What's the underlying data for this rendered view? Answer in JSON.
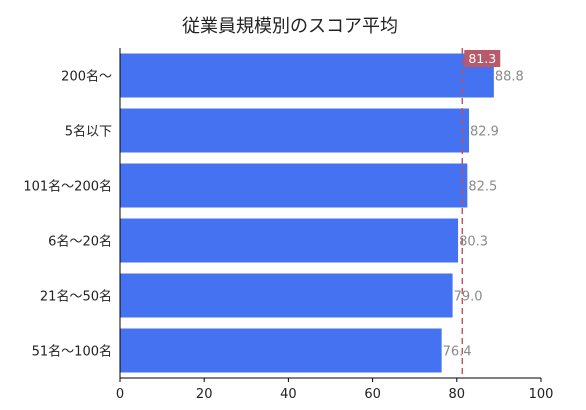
{
  "chart_data": {
    "type": "bar",
    "orientation": "horizontal",
    "title": "従業員規模別のスコア平均",
    "xlabel": "",
    "ylabel": "",
    "categories": [
      "200名〜",
      "5名以下",
      "101名〜200名",
      "6名〜20名",
      "21名〜50名",
      "51名〜100名"
    ],
    "values": [
      88.8,
      82.9,
      82.5,
      80.3,
      79.0,
      76.4
    ],
    "value_labels": [
      "88.8",
      "82.9",
      "82.5",
      "80.3",
      "79.0",
      "76.4"
    ],
    "xlim": [
      0,
      100
    ],
    "xticks": [
      0,
      20,
      40,
      60,
      80,
      100
    ],
    "grid": false,
    "reference_line": {
      "value": 81.3,
      "label": "81.3",
      "style": "dashed"
    },
    "colors": {
      "bar": "#4472f0",
      "reference_line": "#c0505a",
      "reference_label_bg": "#b85a6a",
      "axis": "#000000"
    }
  }
}
